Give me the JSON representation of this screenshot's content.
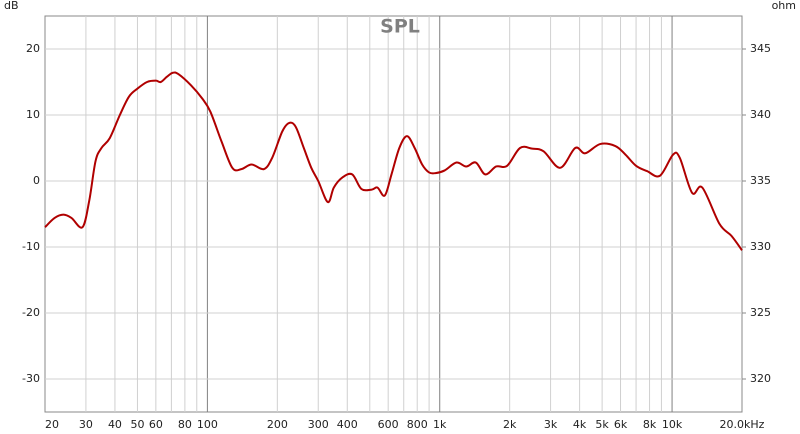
{
  "chart_data": {
    "type": "line",
    "title": "SPL",
    "y_label": "dB",
    "y2_label": "ohm",
    "log_x": true,
    "grid": true,
    "minor_grid": true,
    "xlim": [
      20,
      20000
    ],
    "ylim": [
      -35,
      25
    ],
    "y2lim": [
      317.5,
      347.5
    ],
    "xticks": [
      20,
      30,
      40,
      50,
      60,
      80,
      100,
      200,
      300,
      400,
      600,
      800,
      {
        "value": 1000,
        "label": "1k"
      },
      {
        "value": 2000,
        "label": "2k"
      },
      {
        "value": 3000,
        "label": "3k"
      },
      {
        "value": 4000,
        "label": "4k"
      },
      {
        "value": 5000,
        "label": "5k"
      },
      {
        "value": 6000,
        "label": "6k"
      },
      {
        "value": 8000,
        "label": "8k"
      },
      {
        "value": 10000,
        "label": "10k"
      },
      {
        "value": 20000,
        "label": "20.0kHz"
      }
    ],
    "yticks": [
      -30,
      -20,
      -10,
      0,
      10,
      20
    ],
    "y2ticks": [
      320,
      325,
      330,
      335,
      340,
      345
    ],
    "x": [
      20,
      22,
      24,
      26,
      29,
      31,
      33,
      35,
      38,
      42,
      46,
      50,
      55,
      60,
      63,
      67,
      71,
      75,
      85,
      95,
      103,
      115,
      128,
      140,
      155,
      175,
      190,
      210,
      225,
      240,
      260,
      280,
      300,
      330,
      350,
      380,
      420,
      460,
      510,
      540,
      580,
      620,
      670,
      723,
      780,
      840,
      900,
      960,
      1050,
      1180,
      1300,
      1430,
      1570,
      1750,
      1950,
      2216,
      2500,
      2800,
      3300,
      3830,
      4230,
      4900,
      5700,
      6300,
      7000,
      7800,
      8870,
      10100,
      10800,
      12200,
      13500,
      16000,
      18000,
      20000
    ],
    "series": [
      {
        "name": "SPL",
        "color": "#b00000",
        "values": [
          -7,
          -5.6,
          -5.1,
          -5.6,
          -7,
          -3,
          3,
          5,
          6.5,
          10,
          12.8,
          14,
          15,
          15.2,
          15,
          15.8,
          16.4,
          16.2,
          14.5,
          12.5,
          10.5,
          6,
          2,
          1.8,
          2.5,
          1.8,
          3.5,
          7.5,
          8.8,
          8.2,
          5,
          2,
          0,
          -3.2,
          -1,
          0.5,
          1,
          -1.2,
          -1.3,
          -1,
          -2.2,
          1,
          5,
          6.8,
          5,
          2.5,
          1.3,
          1.2,
          1.6,
          2.8,
          2.2,
          2.8,
          1,
          2.2,
          2.3,
          5,
          4.9,
          4.5,
          2,
          5,
          4.2,
          5.6,
          5.3,
          4,
          2.3,
          1.5,
          0.8,
          4,
          3.5,
          -1.8,
          -1,
          -6.5,
          -8.3,
          -10.5
        ]
      }
    ]
  }
}
